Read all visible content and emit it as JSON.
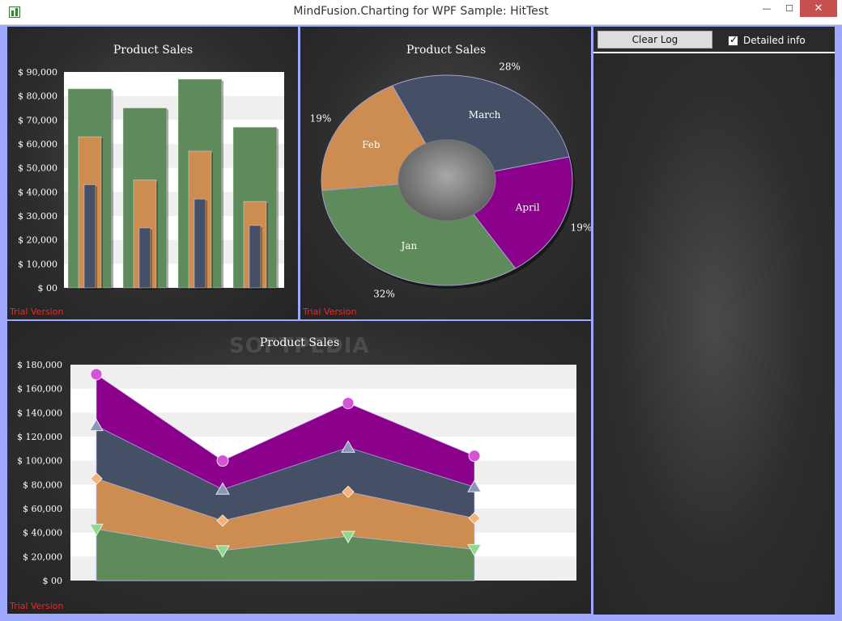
{
  "window": {
    "title": "MindFusion.Charting for WPF Sample: HitTest",
    "min_glyph": "—",
    "max_glyph": "☐",
    "close_glyph": "✕"
  },
  "trial_label": "Trial Version",
  "watermark": "SOFTPEDIA",
  "log": {
    "clear_button": "Clear Log",
    "detailed_info_label": "Detailed info",
    "detailed_info_checked": true
  },
  "colors": {
    "jan": "#5f8a5c",
    "feb": "#cd8c50",
    "march": "#455066",
    "april": "#8b008b"
  },
  "chart_data": [
    {
      "type": "bar",
      "title": "Product Sales",
      "ylim": [
        0,
        90000
      ],
      "yticks": [
        "$ 00",
        "$ 10,000",
        "$ 20,000",
        "$ 30,000",
        "$ 40,000",
        "$ 50,000",
        "$ 60,000",
        "$ 70,000",
        "$ 80,000",
        "$ 90,000"
      ],
      "series": [
        {
          "values": [
            83000,
            75000,
            87000,
            67000
          ]
        },
        {
          "values": [
            63000,
            45000,
            57000,
            36000
          ]
        },
        {
          "values": [
            43000,
            25000,
            37000,
            26000
          ]
        }
      ]
    },
    {
      "type": "pie",
      "title": "Product Sales",
      "slices": [
        {
          "label": "March",
          "value": 28,
          "percent": "28%"
        },
        {
          "label": "April",
          "value": 19,
          "percent": "19%"
        },
        {
          "label": "Jan",
          "value": 32,
          "percent": "32%"
        },
        {
          "label": "Feb",
          "value": 19,
          "percent": "19%"
        }
      ]
    },
    {
      "type": "area",
      "title": "Product Sales",
      "ylim": [
        0,
        180000
      ],
      "yticks": [
        "$ 00",
        "$ 20,000",
        "$ 40,000",
        "$ 60,000",
        "$ 80,000",
        "$ 100,000",
        "$ 120,000",
        "$ 140,000",
        "$ 160,000",
        "$ 180,000"
      ],
      "series": [
        {
          "marker": "triangle-down",
          "values": [
            43000,
            25000,
            37000,
            26000
          ]
        },
        {
          "marker": "diamond",
          "values": [
            85000,
            50000,
            74000,
            52000
          ]
        },
        {
          "marker": "triangle-up",
          "values": [
            129000,
            76000,
            111000,
            78000
          ]
        },
        {
          "marker": "circle",
          "values": [
            172000,
            100000,
            148000,
            104000
          ]
        }
      ]
    }
  ]
}
